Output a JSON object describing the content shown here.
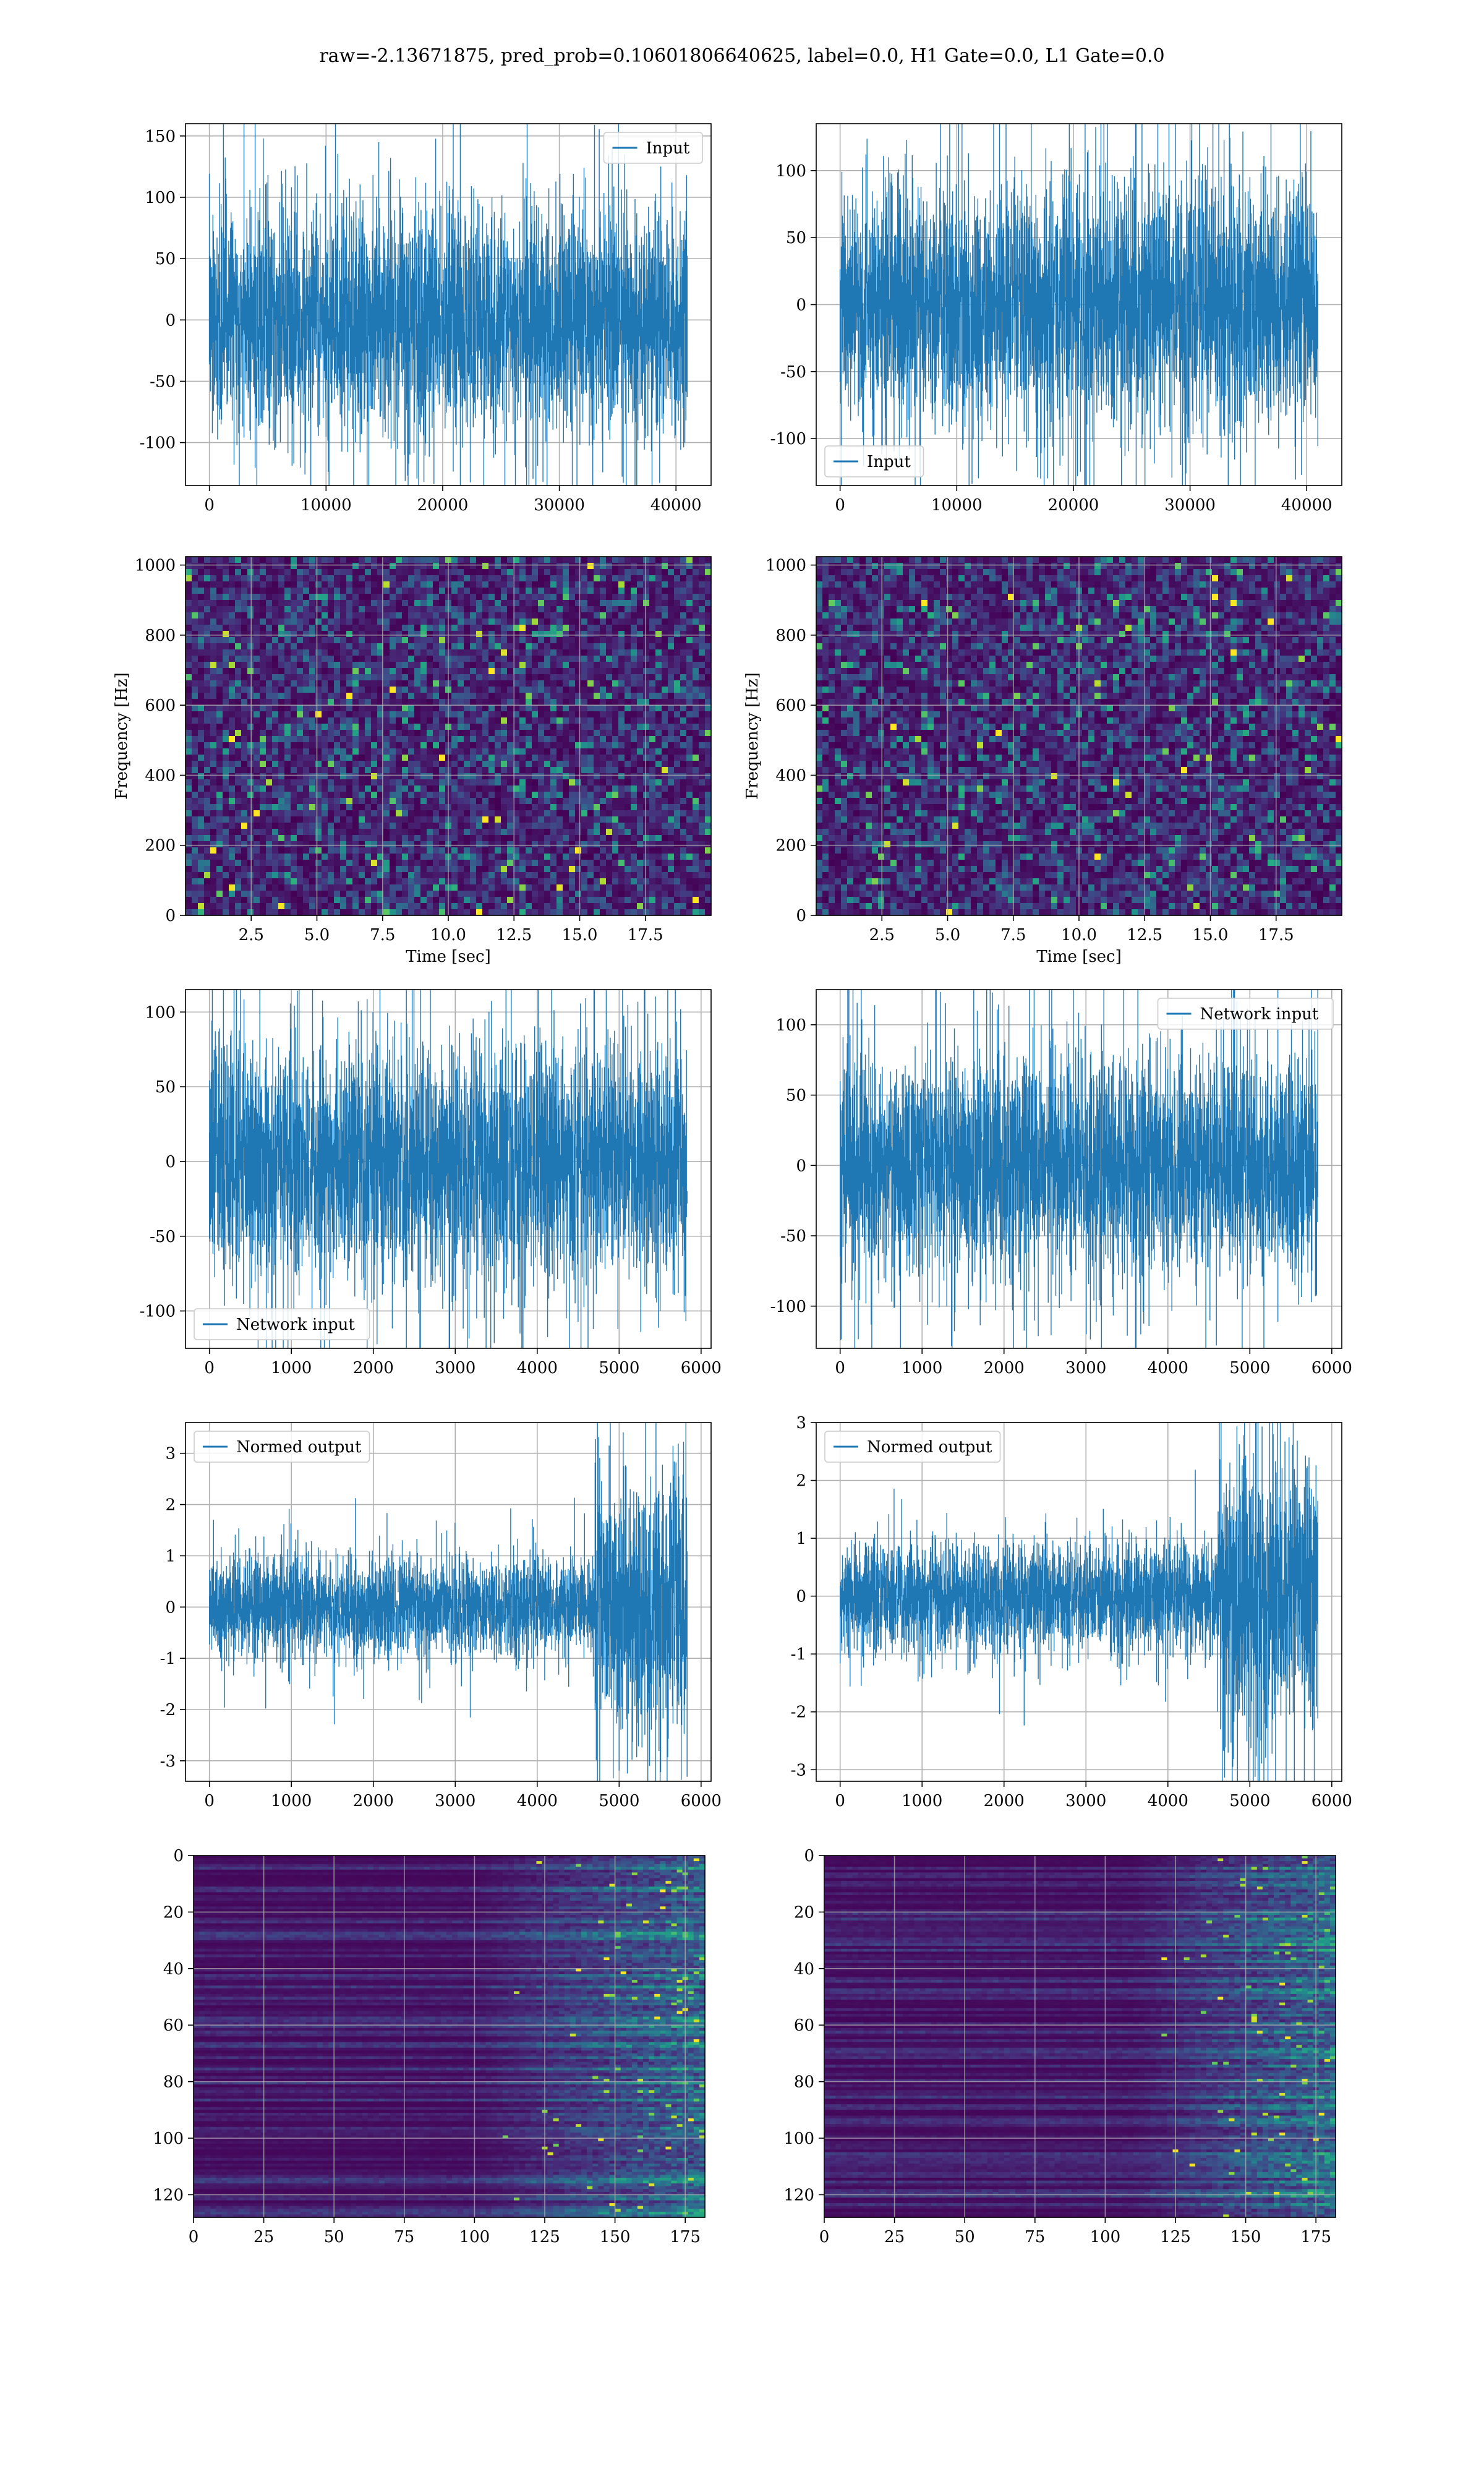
{
  "figure": {
    "title": "raw=-2.13671875, pred_prob=0.10601806640625, label=0.0, H1 Gate=0.0, L1 Gate=0.0"
  },
  "colors": {
    "line": "#1f77b4",
    "grid": "#b0b0b0",
    "axes_edge": "#000000",
    "viridis_dark": "#440154",
    "viridis_mid": "#21908c",
    "viridis_bright": "#fde725"
  },
  "chart_data": [
    {
      "id": "ts_h1_input",
      "type": "line",
      "series": [
        {
          "name": "Input",
          "length": 40960,
          "approx_std": 32
        }
      ],
      "xticks": [
        0,
        10000,
        20000,
        30000,
        40000
      ],
      "xlim": [
        -2048,
        43008
      ],
      "yticks": [
        -100,
        -50,
        0,
        50,
        100,
        150
      ],
      "ylim": [
        -135,
        160
      ],
      "legend": {
        "label": "Input",
        "loc": "upper right"
      },
      "grid": true,
      "xlabel": "",
      "ylabel": ""
    },
    {
      "id": "ts_l1_input",
      "type": "line",
      "series": [
        {
          "name": "Input",
          "length": 40960,
          "approx_std": 32
        }
      ],
      "xticks": [
        0,
        10000,
        20000,
        30000,
        40000
      ],
      "xlim": [
        -2048,
        43008
      ],
      "yticks": [
        -100,
        -50,
        0,
        50,
        100
      ],
      "ylim": [
        -135,
        135
      ],
      "legend": {
        "label": "Input",
        "loc": "lower left"
      },
      "grid": true,
      "xlabel": "",
      "ylabel": ""
    },
    {
      "id": "spec_h1",
      "type": "heatmap",
      "xlabel": "Time [sec]",
      "ylabel": "Frequency [Hz]",
      "xticks": [
        2.5,
        5.0,
        7.5,
        10.0,
        12.5,
        15.0,
        17.5
      ],
      "xlim": [
        0,
        20
      ],
      "yticks": [
        0,
        200,
        400,
        600,
        800,
        1000
      ],
      "ylim": [
        0,
        1024
      ],
      "colormap": "viridis",
      "grid": true
    },
    {
      "id": "spec_l1",
      "type": "heatmap",
      "xlabel": "Time [sec]",
      "ylabel": "Frequency [Hz]",
      "xticks": [
        2.5,
        5.0,
        7.5,
        10.0,
        12.5,
        15.0,
        17.5
      ],
      "xlim": [
        0,
        20
      ],
      "yticks": [
        0,
        200,
        400,
        600,
        800,
        1000
      ],
      "ylim": [
        0,
        1024
      ],
      "colormap": "viridis",
      "grid": true
    },
    {
      "id": "net_h1",
      "type": "line",
      "series": [
        {
          "name": "Network input",
          "length": 5830,
          "approx_std": 28
        }
      ],
      "xticks": [
        0,
        1000,
        2000,
        3000,
        4000,
        5000,
        6000
      ],
      "xlim": [
        -292,
        6122
      ],
      "yticks": [
        -100,
        -50,
        0,
        50,
        100
      ],
      "ylim": [
        -125,
        115
      ],
      "legend": {
        "label": "Network input",
        "loc": "lower left"
      },
      "grid": true,
      "xlabel": "",
      "ylabel": ""
    },
    {
      "id": "net_l1",
      "type": "line",
      "series": [
        {
          "name": "Network input",
          "length": 5830,
          "approx_std": 28
        }
      ],
      "xticks": [
        0,
        1000,
        2000,
        3000,
        4000,
        5000,
        6000
      ],
      "xlim": [
        -292,
        6122
      ],
      "yticks": [
        -100,
        -50,
        0,
        50,
        100
      ],
      "ylim": [
        -130,
        125
      ],
      "legend": {
        "label": "Network input",
        "loc": "upper right"
      },
      "grid": true,
      "xlabel": "",
      "ylabel": ""
    },
    {
      "id": "norm_h1",
      "type": "line",
      "series": [
        {
          "name": "Normed output",
          "length": 5830,
          "approx_std": 0.35,
          "burst_start": 4700,
          "burst_std": 1.0
        }
      ],
      "xticks": [
        0,
        1000,
        2000,
        3000,
        4000,
        5000,
        6000
      ],
      "xlim": [
        -292,
        6122
      ],
      "yticks": [
        -3,
        -2,
        -1,
        0,
        1,
        2,
        3
      ],
      "ylim": [
        -3.4,
        3.6
      ],
      "legend": {
        "label": "Normed output",
        "loc": "upper left"
      },
      "grid": true,
      "xlabel": "",
      "ylabel": ""
    },
    {
      "id": "norm_l1",
      "type": "line",
      "series": [
        {
          "name": "Normed output",
          "length": 5830,
          "approx_std": 0.33,
          "burst_start": 4600,
          "burst_std": 0.85
        }
      ],
      "xticks": [
        0,
        1000,
        2000,
        3000,
        4000,
        5000,
        6000
      ],
      "xlim": [
        -292,
        6122
      ],
      "yticks": [
        -3,
        -2,
        -1,
        0,
        1,
        2,
        3
      ],
      "ylim": [
        -3.2,
        3.0
      ],
      "legend": {
        "label": "Normed output",
        "loc": "upper left"
      },
      "grid": true,
      "xlabel": "",
      "ylabel": ""
    },
    {
      "id": "feat_h1",
      "type": "heatmap",
      "xticks": [
        0,
        25,
        50,
        75,
        100,
        125,
        150,
        175
      ],
      "xlim": [
        0,
        182
      ],
      "yticks": [
        0,
        20,
        40,
        60,
        80,
        100,
        120
      ],
      "ylim": [
        128,
        0
      ],
      "colormap": "viridis",
      "grid": true,
      "bright_from_x": 100,
      "xlabel": "",
      "ylabel": ""
    },
    {
      "id": "feat_l1",
      "type": "heatmap",
      "xticks": [
        0,
        25,
        50,
        75,
        100,
        125,
        150,
        175
      ],
      "xlim": [
        0,
        182
      ],
      "yticks": [
        0,
        20,
        40,
        60,
        80,
        100,
        120
      ],
      "ylim": [
        128,
        0
      ],
      "colormap": "viridis",
      "grid": true,
      "bright_from_x": 110,
      "xlabel": "",
      "ylabel": ""
    }
  ]
}
